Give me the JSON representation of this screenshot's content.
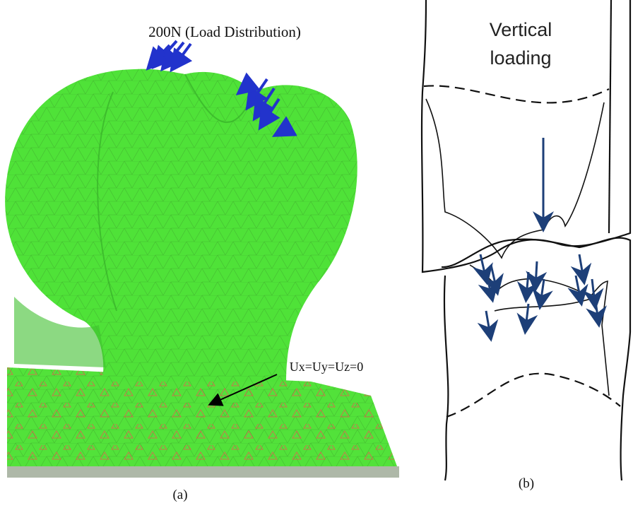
{
  "panel_a": {
    "load_label": "200N (Load Distribution)",
    "constraint_label": "Ux=Uy=Uz=0",
    "caption": "(a)"
  },
  "panel_b": {
    "loading_label": "Vertical loading",
    "caption": "(b)"
  }
}
